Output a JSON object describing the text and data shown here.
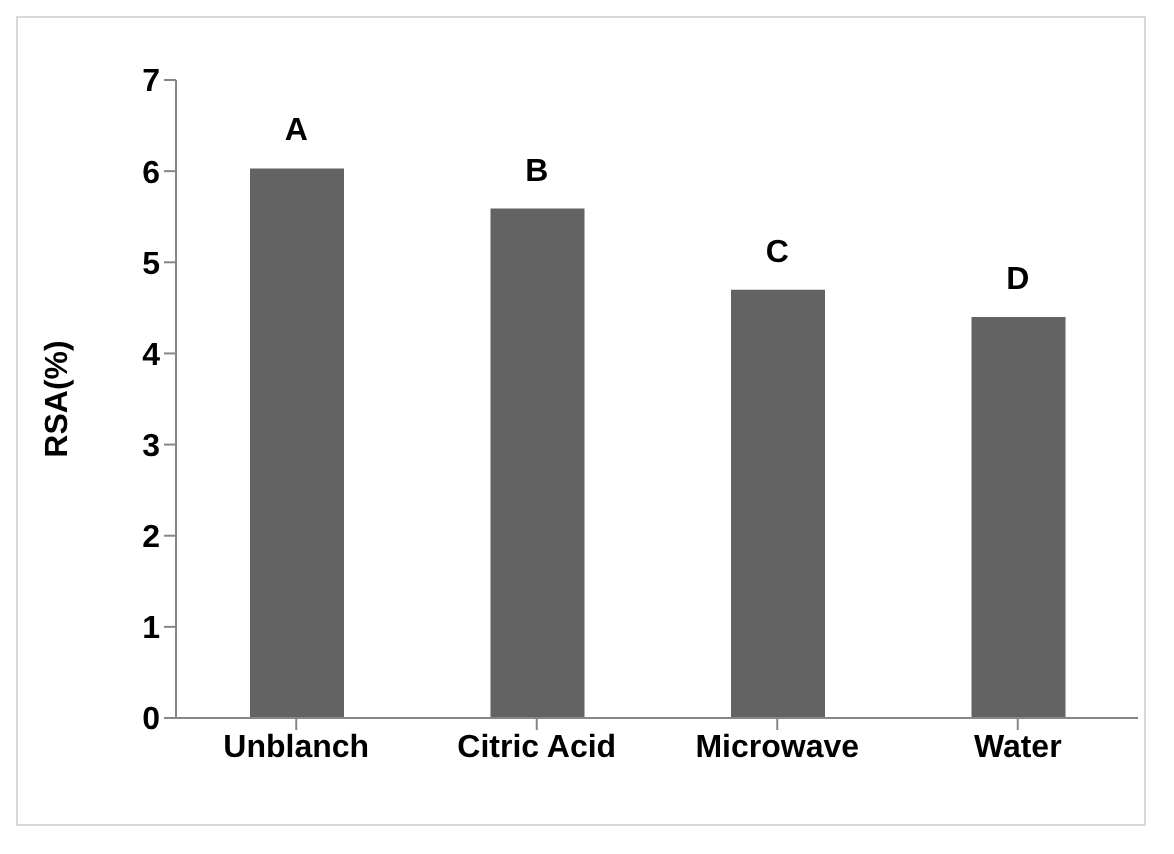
{
  "chart_data": {
    "type": "bar",
    "ylabel": "RSA(%)",
    "categories": [
      "Unblanch",
      "Citric Acid",
      "Microwave",
      "Water"
    ],
    "values": [
      6.03,
      5.59,
      4.7,
      4.4
    ],
    "color": "#636363",
    "ylim": [
      0,
      7
    ],
    "yticks": [
      0,
      1,
      2,
      3,
      4,
      5,
      6,
      7
    ],
    "grid": false,
    "legend": false,
    "annotations": [
      {
        "text": "A",
        "x": "Unblanch",
        "y": 6.03
      },
      {
        "text": "B",
        "x": "Citric Acid",
        "y": 5.59
      },
      {
        "text": "C",
        "x": "Microwave",
        "y": 4.7
      },
      {
        "text": "D",
        "x": "Water",
        "y": 4.4
      }
    ]
  }
}
